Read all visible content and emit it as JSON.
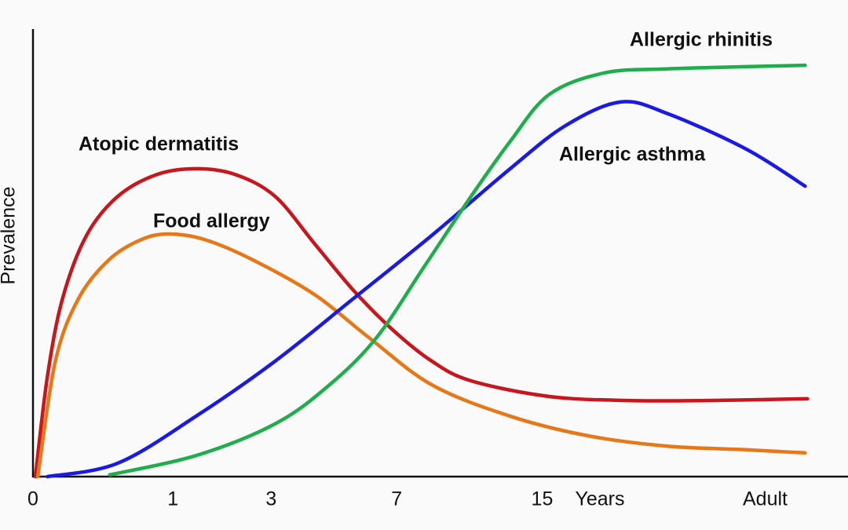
{
  "chart_data": {
    "type": "line",
    "y_label": "Prevalence",
    "x_label": "Years",
    "xlim": [
      0,
      100
    ],
    "ylim": [
      0,
      100
    ],
    "xticks": [
      {
        "value": 0,
        "label": "0"
      },
      {
        "value": 17.5,
        "label": "1"
      },
      {
        "value": 29.8,
        "label": "3"
      },
      {
        "value": 45.5,
        "label": "7"
      },
      {
        "value": 63.7,
        "label": "15"
      },
      {
        "value": 91.6,
        "label": "Adult"
      }
    ],
    "series": [
      {
        "name": "Atopic dermatitis",
        "color": "#c8161d",
        "x": [
          0.3,
          1.8,
          3.7,
          6.7,
          10.6,
          15.5,
          20.4,
          25.3,
          30.3,
          35.2,
          40.1,
          45.0,
          49.9,
          54.8,
          64.6,
          74.5,
          84.3,
          96.9
        ],
        "values": [
          0,
          22.3,
          39.8,
          53.9,
          62.6,
          67.5,
          68.8,
          67.5,
          62.6,
          52.1,
          41.6,
          32.8,
          25.8,
          21.4,
          17.9,
          17.0,
          17.0,
          17.4
        ]
      },
      {
        "name": "Food allergy",
        "color": "#e67817",
        "x": [
          0.6,
          2.8,
          5.7,
          9.6,
          13.6,
          17.0,
          21.4,
          27.3,
          35.2,
          42.0,
          49.9,
          59.7,
          69.5,
          79.4,
          89.2,
          96.6
        ],
        "values": [
          0,
          25.8,
          39.8,
          48.6,
          53.0,
          54.2,
          53.0,
          48.6,
          40.7,
          31.1,
          20.5,
          13.5,
          9.1,
          6.8,
          6.0,
          5.3
        ]
      },
      {
        "name": "Allergic asthma",
        "color": "#1a1ae6",
        "x": [
          1.8,
          10.6,
          20.4,
          30.3,
          40.1,
          49.9,
          59.7,
          66.6,
          73.5,
          79.4,
          89.2,
          96.6
        ],
        "values": [
          0,
          3.0,
          13.5,
          25.8,
          39.8,
          53.9,
          68.8,
          78.4,
          83.7,
          81.1,
          73.2,
          64.9
        ]
      },
      {
        "name": "Allergic rhinitis",
        "color": "#1fae4b",
        "x": [
          9.6,
          20.4,
          30.3,
          37.1,
          43.0,
          48.9,
          54.8,
          59.7,
          64.6,
          71.5,
          79.4,
          89.2,
          96.6
        ],
        "values": [
          0.4,
          4.7,
          11.8,
          20.5,
          31.1,
          46.8,
          62.6,
          74.9,
          85.4,
          90.2,
          91.1,
          91.6,
          91.9
        ]
      }
    ]
  }
}
